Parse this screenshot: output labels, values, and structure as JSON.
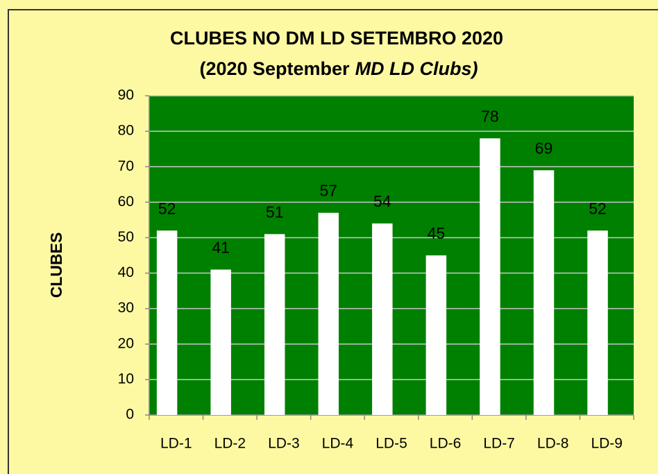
{
  "chart_data": {
    "type": "bar",
    "title": "CLUBES NO DM LD SETEMBRO 2020",
    "subtitle": [
      "(2020  September",
      "MD LD Clubs)"
    ],
    "y_label": "CLUBES",
    "categories": [
      "LD-1",
      "LD-2",
      "LD-3",
      "LD-4",
      "LD-5",
      "LD-6",
      "LD-7",
      "LD-8",
      "LD-9"
    ],
    "values": [
      52,
      41,
      51,
      57,
      54,
      45,
      78,
      69,
      52
    ],
    "color": "#ffffff",
    "plot_background": "#008000",
    "ylim": [
      0,
      90
    ],
    "yticks": [
      0,
      10,
      20,
      30,
      40,
      50,
      60,
      70,
      80,
      90
    ],
    "grid": true
  }
}
